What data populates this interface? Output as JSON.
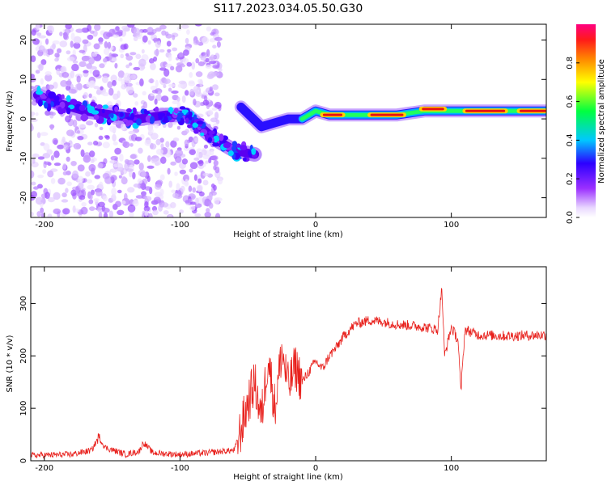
{
  "title": "S117.2023.034.05.50.G30",
  "chart_data": [
    {
      "type": "heatmap",
      "xlabel": "Height of straight line (km)",
      "ylabel": "Frequency (Hz)",
      "xlim": [
        -210,
        170
      ],
      "ylim": [
        -25,
        24
      ],
      "xticks": [
        -200,
        -100,
        0,
        100
      ],
      "yticks": [
        -20,
        -10,
        0,
        10,
        20
      ],
      "colorbar": {
        "label": "Normalized spectral amplitude",
        "range": [
          0,
          1
        ],
        "ticks": [
          0.0,
          0.2,
          0.4,
          0.6,
          0.8
        ]
      },
      "ridge": [
        {
          "x": -205,
          "y": 6
        },
        {
          "x": -190,
          "y": 4
        },
        {
          "x": -170,
          "y": 2
        },
        {
          "x": -150,
          "y": 1
        },
        {
          "x": -130,
          "y": 0
        },
        {
          "x": -110,
          "y": 1
        },
        {
          "x": -95,
          "y": 1
        },
        {
          "x": -85,
          "y": -2
        },
        {
          "x": -75,
          "y": -5
        },
        {
          "x": -60,
          "y": -8
        },
        {
          "x": -45,
          "y": -9
        },
        {
          "x": -55,
          "y": 3
        },
        {
          "x": -40,
          "y": -2
        },
        {
          "x": -30,
          "y": -1
        },
        {
          "x": -20,
          "y": 0
        },
        {
          "x": -10,
          "y": 0
        },
        {
          "x": 0,
          "y": 2
        },
        {
          "x": 10,
          "y": 1
        },
        {
          "x": 30,
          "y": 1
        },
        {
          "x": 60,
          "y": 1
        },
        {
          "x": 80,
          "y": 2
        },
        {
          "x": 100,
          "y": 2
        },
        {
          "x": 130,
          "y": 2
        },
        {
          "x": 170,
          "y": 2
        }
      ],
      "strong_segments": [
        {
          "x0": 5,
          "x1": 20,
          "y": 1
        },
        {
          "x0": 40,
          "x1": 65,
          "y": 1
        },
        {
          "x0": 78,
          "x1": 95,
          "y": 2.5
        },
        {
          "x0": 110,
          "x1": 140,
          "y": 2
        },
        {
          "x0": 150,
          "x1": 170,
          "y": 2
        }
      ],
      "noise_region_x": [
        -210,
        -70
      ]
    },
    {
      "type": "line",
      "xlabel": "Height of straight line (km)",
      "ylabel": "SNR (10 * v/v)",
      "xlim": [
        -210,
        170
      ],
      "ylim": [
        0,
        370
      ],
      "xticks": [
        -200,
        -100,
        0,
        100
      ],
      "yticks": [
        0,
        100,
        200,
        300
      ],
      "series": [
        {
          "color": "#e8201c",
          "x": [
            -210,
            -180,
            -165,
            -160,
            -155,
            -140,
            -130,
            -127,
            -120,
            -100,
            -80,
            -60,
            -55,
            -50,
            -45,
            -40,
            -35,
            -30,
            -25,
            -20,
            -15,
            -10,
            -5,
            0,
            5,
            10,
            15,
            20,
            25,
            30,
            40,
            50,
            60,
            70,
            80,
            90,
            93,
            95,
            100,
            105,
            107,
            110,
            120,
            140,
            170
          ],
          "y": [
            10,
            12,
            20,
            45,
            25,
            12,
            18,
            35,
            15,
            12,
            15,
            20,
            60,
            110,
            150,
            80,
            200,
            100,
            210,
            140,
            180,
            150,
            170,
            190,
            175,
            200,
            215,
            235,
            250,
            262,
            268,
            265,
            260,
            258,
            255,
            250,
            330,
            200,
            255,
            230,
            130,
            250,
            240,
            238,
            240
          ]
        }
      ]
    }
  ]
}
